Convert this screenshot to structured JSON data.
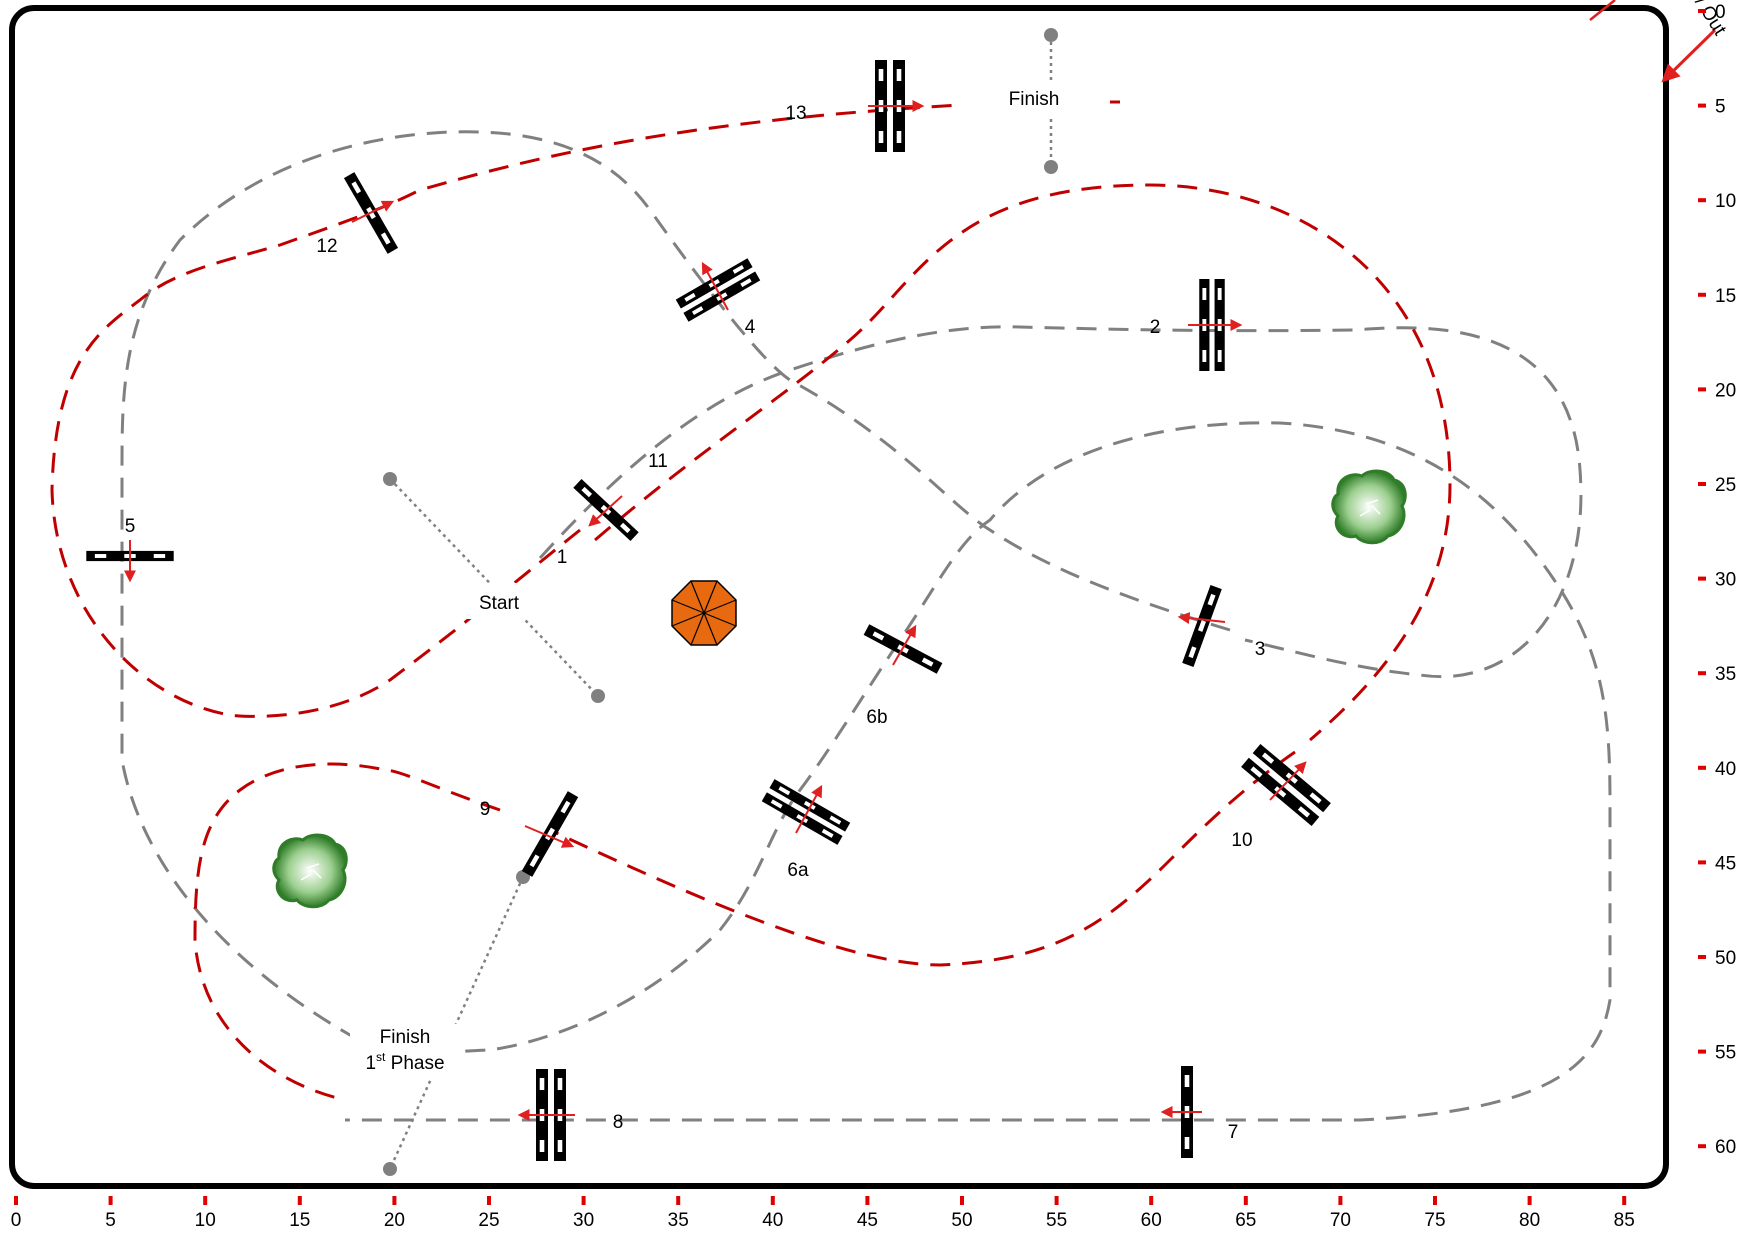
{
  "start_label": "Start",
  "finish_label": "Finish",
  "finish_phase": {
    "line1": "Finish",
    "line2_num": "1",
    "line2_sup": "st",
    "line2_rest": " Phase"
  },
  "in_out_label": "In / Out",
  "x_axis": {
    "ticks": [
      "0",
      "5",
      "10",
      "15",
      "20",
      "25",
      "30",
      "35",
      "40",
      "45",
      "50",
      "55",
      "60",
      "65",
      "70",
      "75",
      "80",
      "85"
    ]
  },
  "y_axis": {
    "ticks": [
      "0",
      "5",
      "10",
      "15",
      "20",
      "25",
      "30",
      "35",
      "40",
      "45",
      "50",
      "55",
      "60"
    ]
  },
  "obstacles": [
    {
      "number": "1"
    },
    {
      "number": "2"
    },
    {
      "number": "3"
    },
    {
      "number": "4"
    },
    {
      "number": "5"
    },
    {
      "number": "6a"
    },
    {
      "number": "6b"
    },
    {
      "number": "7"
    },
    {
      "number": "8"
    },
    {
      "number": "9"
    },
    {
      "number": "10"
    },
    {
      "number": "11"
    },
    {
      "number": "12"
    },
    {
      "number": "13"
    }
  ],
  "colors": {
    "arena_border": "#000000",
    "phase1_path": "#808080",
    "phase2_path": "#c00000",
    "arrow": "#e02020",
    "tree": "#3a8a30",
    "kiosk": "#e86a10",
    "start_finish_markers": "#808080"
  },
  "icons": [
    "tree-icon",
    "octagon-kiosk-icon",
    "direction-arrow-icon"
  ]
}
